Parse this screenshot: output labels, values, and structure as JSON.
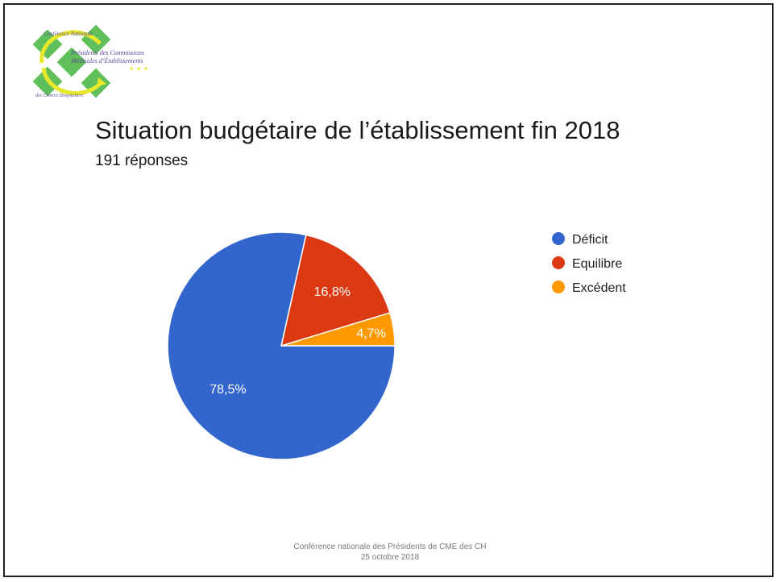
{
  "slide": {
    "title": "Situation budgétaire de l’établissement fin 2018",
    "subtitle": "191 réponses",
    "footer_line1": "Conférence nationale des Présidents de CME des CH",
    "footer_line2": "25 octobre 2018"
  },
  "logo": {
    "arc_top_text": "Conférence Nationale",
    "arc_bottom_text": "des Centres Hospitaliers",
    "line1": "Présidents des Commissions",
    "line2": "Médicales d’Établissements",
    "colors": {
      "green": "#5fbf5a",
      "yellow": "#e8e82a",
      "text": "#5a4a9a"
    }
  },
  "chart_data": {
    "type": "pie",
    "categories": [
      "Déficit",
      "Equilibre",
      "Excédent"
    ],
    "values": [
      78.5,
      16.8,
      4.7
    ],
    "labels": [
      "78,5%",
      "16,8%",
      "4,7%"
    ],
    "colors": [
      "#3366cc",
      "#dc3912",
      "#ff9900"
    ],
    "legend_position": "right"
  }
}
